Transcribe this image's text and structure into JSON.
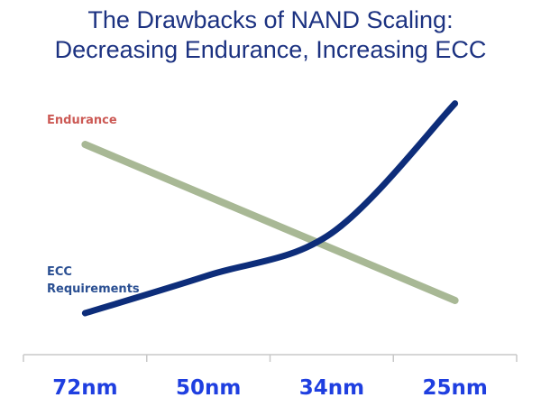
{
  "title_line1": "The Drawbacks of NAND Scaling:",
  "title_line2": "Decreasing Endurance, Increasing ECC",
  "chart_data": {
    "type": "line",
    "title": "The Drawbacks of NAND Scaling: Decreasing Endurance, Increasing ECC",
    "categories": [
      "72nm",
      "50nm",
      "34nm",
      "25nm"
    ],
    "xlabel": "",
    "ylabel": "",
    "ylim": [
      0,
      100
    ],
    "grid": false,
    "series": [
      {
        "name": "Endurance",
        "values": [
          79.5,
          59.5,
          40,
          20.5
        ],
        "color": "#a8b895",
        "label_color": "#cc5a55"
      },
      {
        "name": "ECC Requirements",
        "label_lines": [
          "ECC",
          "Requirements"
        ],
        "values": [
          15.7,
          30,
          46,
          95
        ],
        "color": "#0d2d7a",
        "label_color": "#2a4f92"
      }
    ]
  }
}
